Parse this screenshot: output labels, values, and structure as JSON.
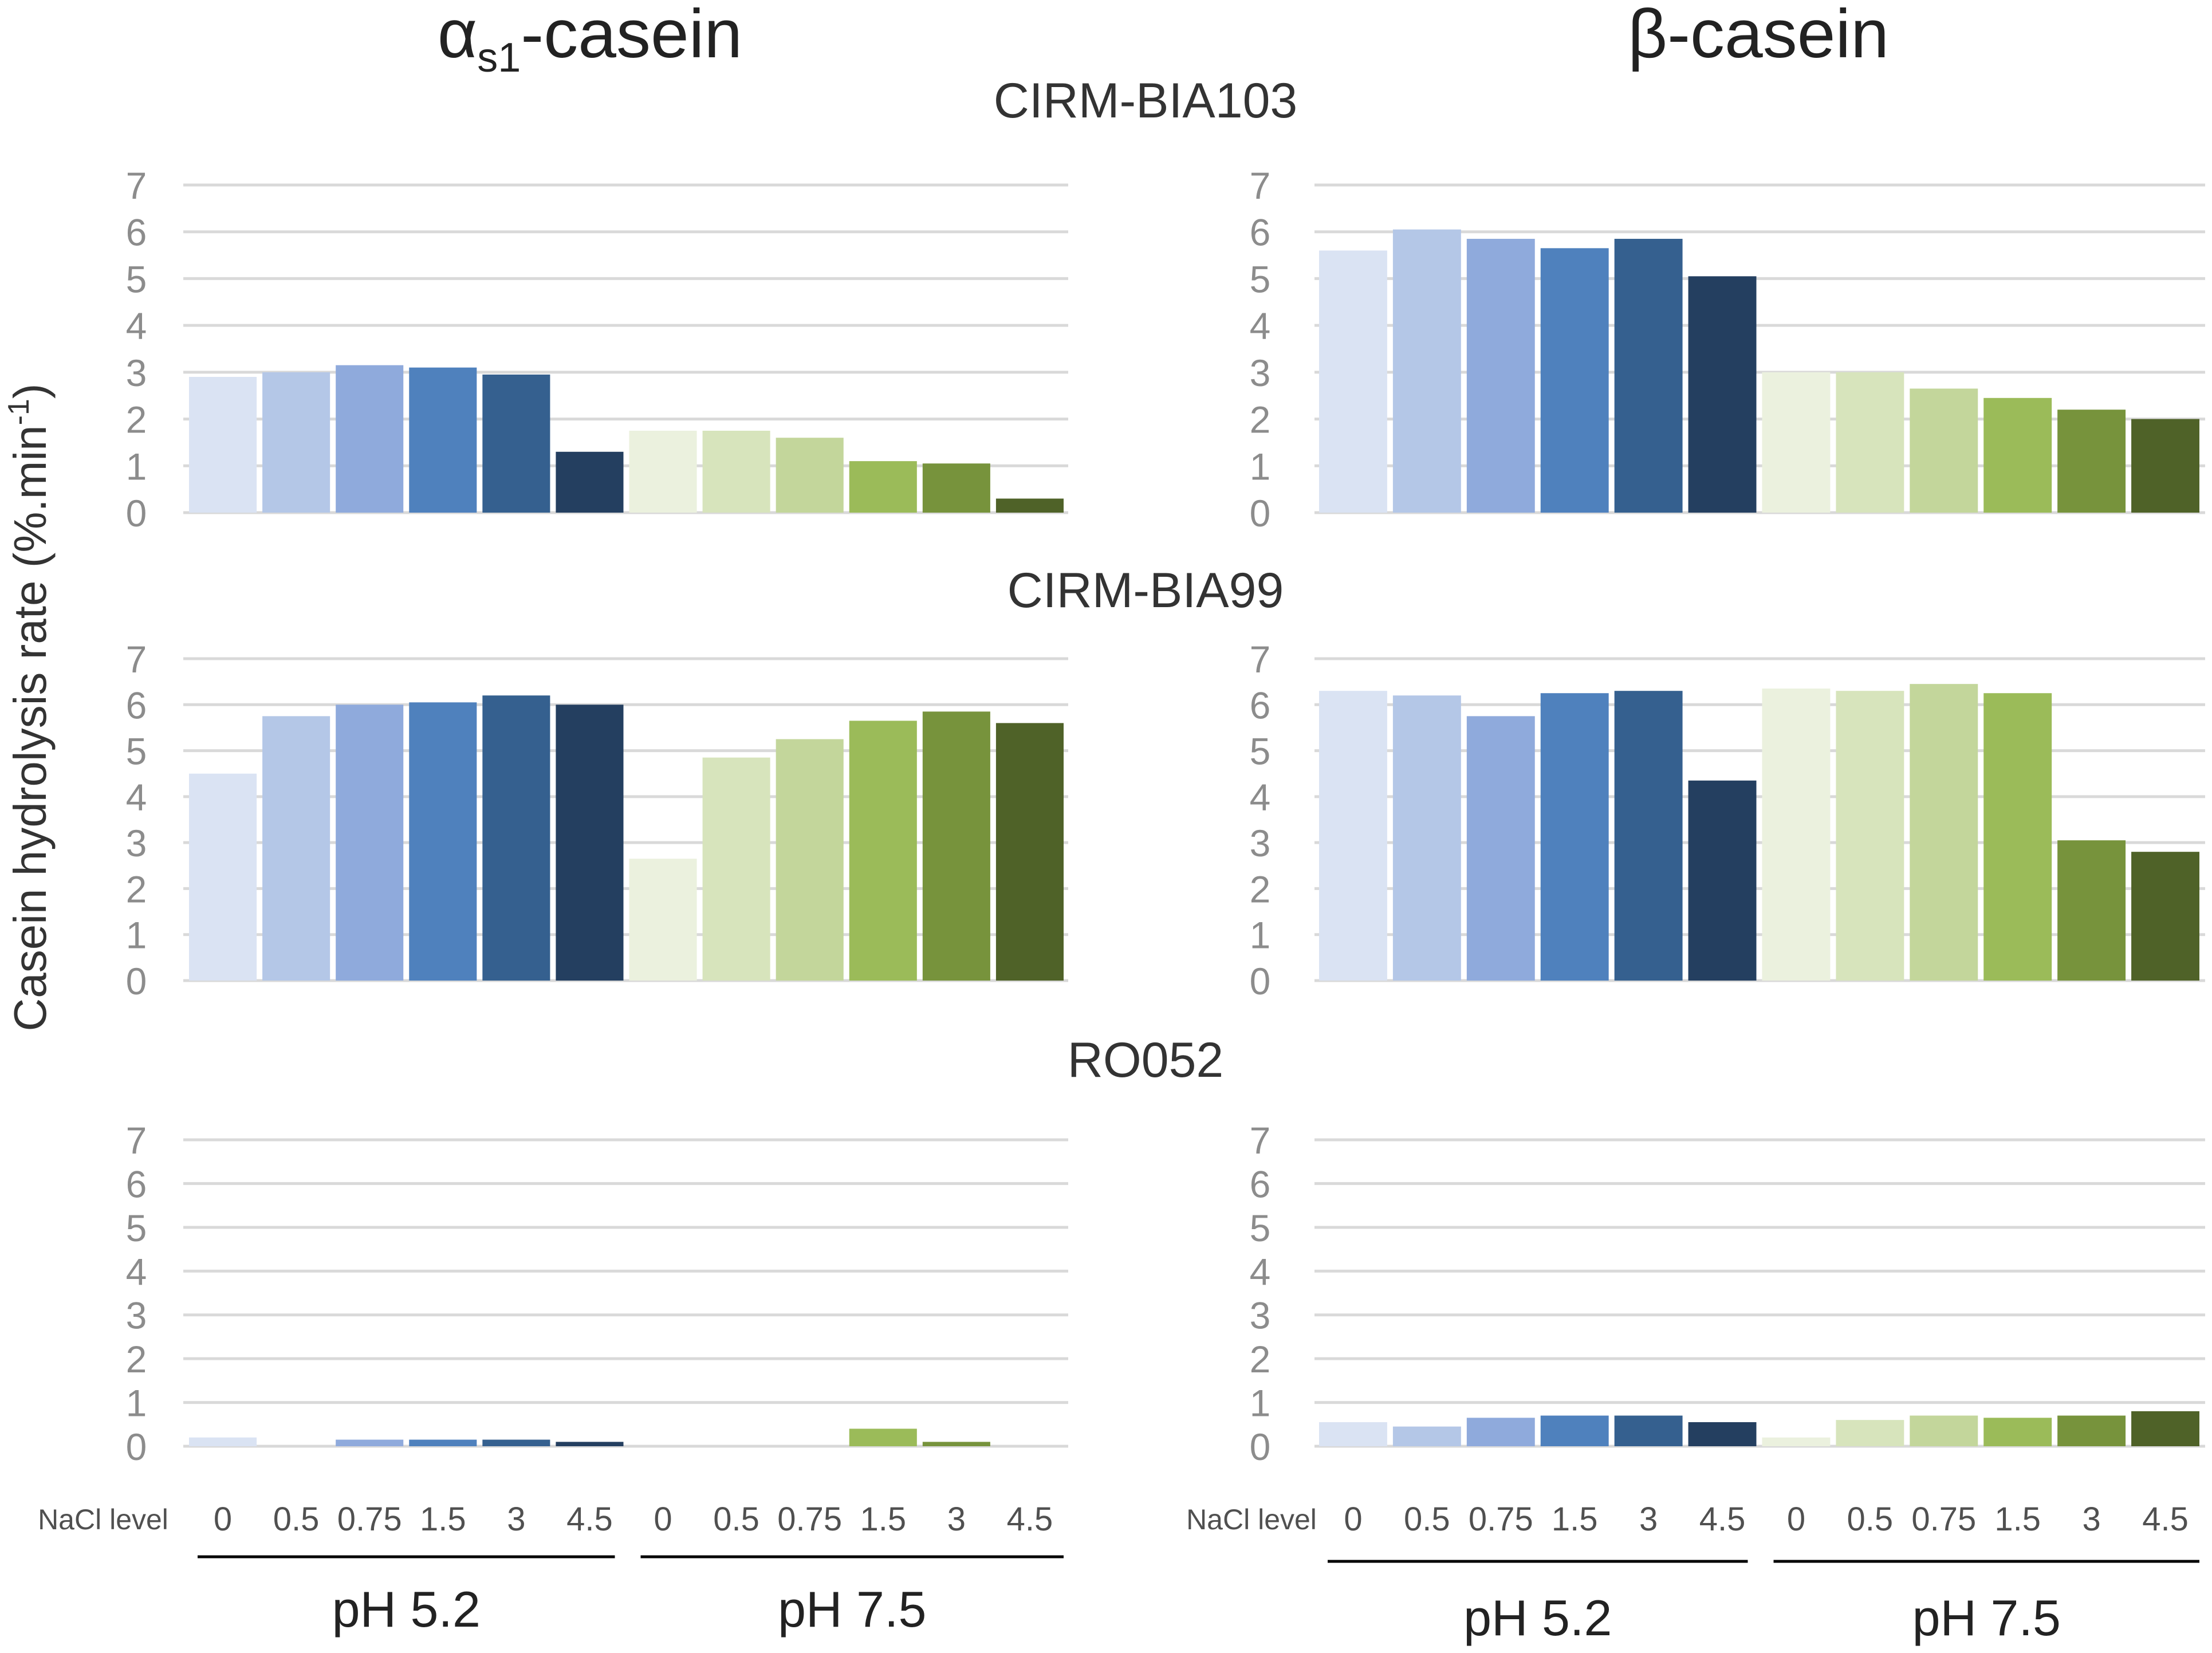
{
  "figure": {
    "column_titles": [
      {
        "greek": "α",
        "sub": "s1",
        "rest": "-casein"
      },
      {
        "greek": "β",
        "sub": "",
        "rest": "-casein"
      }
    ],
    "y_axis_label": {
      "main": "Casein hydrolysis rate (%.min",
      "sup": "-1",
      "close": ")"
    },
    "strains": [
      "CIRM-BIA103",
      "CIRM-BIA99",
      "RO052"
    ],
    "nacl_label": "NaCl level",
    "nacl_levels": [
      "0",
      "0.5",
      "0.75",
      "1.5",
      "3",
      "4.5"
    ],
    "ph_groups": [
      "pH 5.2",
      "pH 7.5"
    ],
    "colors_ph52": [
      "#dae3f3",
      "#b4c7e7",
      "#8faadc",
      "#4f81bd",
      "#35608f",
      "#243f60"
    ],
    "colors_ph75": [
      "#ebf1de",
      "#d7e4bc",
      "#c3d69b",
      "#9bbb59",
      "#77933c",
      "#4f6228"
    ]
  },
  "chart_data": [
    {
      "type": "bar",
      "title": "CIRM-BIA103",
      "casein": "αs1-casein",
      "ylabel": "Casein hydrolysis rate (%.min-1)",
      "ylim": [
        0,
        7
      ],
      "yticks": [
        "0",
        "1",
        "2",
        "3",
        "4",
        "5",
        "6",
        "7"
      ],
      "categories": [
        "0",
        "0.5",
        "0.75",
        "1.5",
        "3",
        "4.5"
      ],
      "series": [
        {
          "name": "pH 5.2",
          "values": [
            2.9,
            3.0,
            3.15,
            3.1,
            2.95,
            1.3
          ]
        },
        {
          "name": "pH 7.5",
          "values": [
            1.75,
            1.75,
            1.6,
            1.1,
            1.05,
            0.3
          ]
        }
      ]
    },
    {
      "type": "bar",
      "title": "CIRM-BIA103",
      "casein": "β-casein",
      "ylabel": "Casein hydrolysis rate (%.min-1)",
      "ylim": [
        0,
        7
      ],
      "yticks": [
        "0",
        "1",
        "2",
        "3",
        "4",
        "5",
        "6",
        "7"
      ],
      "categories": [
        "0",
        "0.5",
        "0.75",
        "1.5",
        "3",
        "4.5"
      ],
      "series": [
        {
          "name": "pH 5.2",
          "values": [
            5.6,
            6.05,
            5.85,
            5.65,
            5.85,
            5.05
          ]
        },
        {
          "name": "pH 7.5",
          "values": [
            3.0,
            3.0,
            2.65,
            2.45,
            2.2,
            2.0
          ]
        }
      ]
    },
    {
      "type": "bar",
      "title": "CIRM-BIA99",
      "casein": "αs1-casein",
      "ylabel": "Casein hydrolysis rate (%.min-1)",
      "ylim": [
        0,
        7
      ],
      "yticks": [
        "0",
        "1",
        "2",
        "3",
        "4",
        "5",
        "6",
        "7"
      ],
      "categories": [
        "0",
        "0.5",
        "0.75",
        "1.5",
        "3",
        "4.5"
      ],
      "series": [
        {
          "name": "pH 5.2",
          "values": [
            4.5,
            5.75,
            6.0,
            6.05,
            6.2,
            6.0
          ]
        },
        {
          "name": "pH 7.5",
          "values": [
            2.65,
            4.85,
            5.25,
            5.65,
            5.85,
            5.6
          ]
        }
      ]
    },
    {
      "type": "bar",
      "title": "CIRM-BIA99",
      "casein": "β-casein",
      "ylabel": "Casein hydrolysis rate (%.min-1)",
      "ylim": [
        0,
        7
      ],
      "yticks": [
        "0",
        "1",
        "2",
        "3",
        "4",
        "5",
        "6",
        "7"
      ],
      "categories": [
        "0",
        "0.5",
        "0.75",
        "1.5",
        "3",
        "4.5"
      ],
      "series": [
        {
          "name": "pH 5.2",
          "values": [
            6.3,
            6.2,
            5.75,
            6.25,
            6.3,
            4.35
          ]
        },
        {
          "name": "pH 7.5",
          "values": [
            6.35,
            6.3,
            6.45,
            6.25,
            3.05,
            2.8
          ]
        }
      ]
    },
    {
      "type": "bar",
      "title": "RO052",
      "casein": "αs1-casein",
      "ylabel": "Casein hydrolysis rate (%.min-1)",
      "ylim": [
        0,
        7
      ],
      "yticks": [
        "0",
        "1",
        "2",
        "3",
        "4",
        "5",
        "6",
        "7"
      ],
      "categories": [
        "0",
        "0.5",
        "0.75",
        "1.5",
        "3",
        "4.5"
      ],
      "series": [
        {
          "name": "pH 5.2",
          "values": [
            0.2,
            0.0,
            0.15,
            0.15,
            0.15,
            0.1
          ]
        },
        {
          "name": "pH 7.5",
          "values": [
            0.0,
            0.0,
            0.0,
            0.4,
            0.1,
            0.0
          ]
        }
      ]
    },
    {
      "type": "bar",
      "title": "RO052",
      "casein": "β-casein",
      "ylabel": "Casein hydrolysis rate (%.min-1)",
      "ylim": [
        0,
        7
      ],
      "yticks": [
        "0",
        "1",
        "2",
        "3",
        "4",
        "5",
        "6",
        "7"
      ],
      "categories": [
        "0",
        "0.5",
        "0.75",
        "1.5",
        "3",
        "4.5"
      ],
      "series": [
        {
          "name": "pH 5.2",
          "values": [
            0.55,
            0.45,
            0.65,
            0.7,
            0.7,
            0.55
          ]
        },
        {
          "name": "pH 7.5",
          "values": [
            0.2,
            0.6,
            0.7,
            0.65,
            0.7,
            0.8
          ]
        }
      ]
    }
  ]
}
